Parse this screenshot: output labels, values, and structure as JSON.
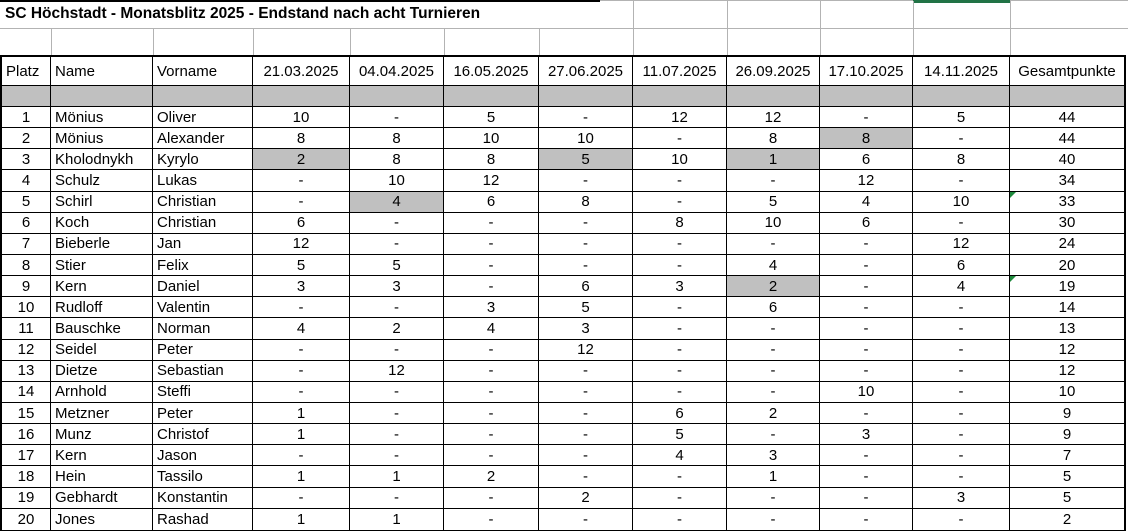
{
  "title": "SC Höchstadt - Monatsblitz 2025 - Endstand nach acht Turnieren",
  "colors": {
    "highlight_fill": "#c0c0c0",
    "selection_green": "#217346",
    "flag_green": "#1e8a3c",
    "gridline_gray": "#b3b3b3"
  },
  "selection_indicator": {
    "description": "green selected-cell border segment at top of sheet",
    "over_column": "14.11.2025"
  },
  "table": {
    "headers": [
      "Platz",
      "Name",
      "Vorname",
      "21.03.2025",
      "04.04.2025",
      "16.05.2025",
      "27.06.2025",
      "11.07.2025",
      "26.09.2025",
      "17.10.2025",
      "14.11.2025",
      "Gesamtpunkte"
    ],
    "rows": [
      {
        "platz": "1",
        "name": "Mönius",
        "vorname": "Oliver",
        "scores": [
          "10",
          "-",
          "5",
          "-",
          "12",
          "12",
          "-",
          "5"
        ],
        "gesamt": "44",
        "highlighted": [],
        "flag": false
      },
      {
        "platz": "2",
        "name": "Mönius",
        "vorname": "Alexander",
        "scores": [
          "8",
          "8",
          "10",
          "10",
          "-",
          "8",
          "8",
          "-"
        ],
        "gesamt": "44",
        "highlighted": [
          6
        ],
        "flag": false
      },
      {
        "platz": "3",
        "name": "Kholodnykh",
        "vorname": "Kyrylo",
        "scores": [
          "2",
          "8",
          "8",
          "5",
          "10",
          "1",
          "6",
          "8"
        ],
        "gesamt": "40",
        "highlighted": [
          0,
          3,
          5
        ],
        "flag": false
      },
      {
        "platz": "4",
        "name": "Schulz",
        "vorname": "Lukas",
        "scores": [
          "-",
          "10",
          "12",
          "-",
          "-",
          "-",
          "12",
          "-"
        ],
        "gesamt": "34",
        "highlighted": [],
        "flag": false
      },
      {
        "platz": "5",
        "name": "Schirl",
        "vorname": "Christian",
        "scores": [
          "-",
          "4",
          "6",
          "8",
          "-",
          "5",
          "4",
          "10"
        ],
        "gesamt": "33",
        "highlighted": [
          1
        ],
        "flag": true
      },
      {
        "platz": "6",
        "name": "Koch",
        "vorname": "Christian",
        "scores": [
          "6",
          "-",
          "-",
          "-",
          "8",
          "10",
          "6",
          "-"
        ],
        "gesamt": "30",
        "highlighted": [],
        "flag": false
      },
      {
        "platz": "7",
        "name": "Bieberle",
        "vorname": "Jan",
        "scores": [
          "12",
          "-",
          "-",
          "-",
          "-",
          "-",
          "-",
          "12"
        ],
        "gesamt": "24",
        "highlighted": [],
        "flag": false
      },
      {
        "platz": "8",
        "name": "Stier",
        "vorname": "Felix",
        "scores": [
          "5",
          "5",
          "-",
          "-",
          "-",
          "4",
          "-",
          "6"
        ],
        "gesamt": "20",
        "highlighted": [],
        "flag": false
      },
      {
        "platz": "9",
        "name": "Kern",
        "vorname": "Daniel",
        "scores": [
          "3",
          "3",
          "-",
          "6",
          "3",
          "2",
          "-",
          "4"
        ],
        "gesamt": "19",
        "highlighted": [
          5
        ],
        "flag": true
      },
      {
        "platz": "10",
        "name": "Rudloff",
        "vorname": "Valentin",
        "scores": [
          "-",
          "-",
          "3",
          "5",
          "-",
          "6",
          "-",
          "-"
        ],
        "gesamt": "14",
        "highlighted": [],
        "flag": false
      },
      {
        "platz": "11",
        "name": "Bauschke",
        "vorname": "Norman",
        "scores": [
          "4",
          "2",
          "4",
          "3",
          "-",
          "-",
          "-",
          "-"
        ],
        "gesamt": "13",
        "highlighted": [],
        "flag": false
      },
      {
        "platz": "12",
        "name": "Seidel",
        "vorname": "Peter",
        "scores": [
          "-",
          "-",
          "-",
          "12",
          "-",
          "-",
          "-",
          "-"
        ],
        "gesamt": "12",
        "highlighted": [],
        "flag": false
      },
      {
        "platz": "13",
        "name": "Dietze",
        "vorname": "Sebastian",
        "scores": [
          "-",
          "12",
          "-",
          "-",
          "-",
          "-",
          "-",
          "-"
        ],
        "gesamt": "12",
        "highlighted": [],
        "flag": false
      },
      {
        "platz": "14",
        "name": "Arnhold",
        "vorname": "Steffi",
        "scores": [
          "-",
          "-",
          "-",
          "-",
          "-",
          "-",
          "10",
          "-"
        ],
        "gesamt": "10",
        "highlighted": [],
        "flag": false
      },
      {
        "platz": "15",
        "name": "Metzner",
        "vorname": "Peter",
        "scores": [
          "1",
          "-",
          "-",
          "-",
          "6",
          "2",
          "-",
          "-"
        ],
        "gesamt": "9",
        "highlighted": [],
        "flag": false
      },
      {
        "platz": "16",
        "name": "Munz",
        "vorname": "Christof",
        "scores": [
          "1",
          "-",
          "-",
          "-",
          "5",
          "-",
          "3",
          "-"
        ],
        "gesamt": "9",
        "highlighted": [],
        "flag": false
      },
      {
        "platz": "17",
        "name": "Kern",
        "vorname": "Jason",
        "scores": [
          "-",
          "-",
          "-",
          "-",
          "4",
          "3",
          "-",
          "-"
        ],
        "gesamt": "7",
        "highlighted": [],
        "flag": false
      },
      {
        "platz": "18",
        "name": "Hein",
        "vorname": "Tassilo",
        "scores": [
          "1",
          "1",
          "2",
          "-",
          "-",
          "1",
          "-",
          "-"
        ],
        "gesamt": "5",
        "highlighted": [],
        "flag": false
      },
      {
        "platz": "19",
        "name": "Gebhardt",
        "vorname": "Konstantin",
        "scores": [
          "-",
          "-",
          "-",
          "2",
          "-",
          "-",
          "-",
          "3"
        ],
        "gesamt": "5",
        "highlighted": [],
        "flag": false
      },
      {
        "platz": "20",
        "name": "Jones",
        "vorname": "Rashad",
        "scores": [
          "1",
          "1",
          "-",
          "-",
          "-",
          "-",
          "-",
          "-"
        ],
        "gesamt": "2",
        "highlighted": [],
        "flag": false
      }
    ]
  }
}
